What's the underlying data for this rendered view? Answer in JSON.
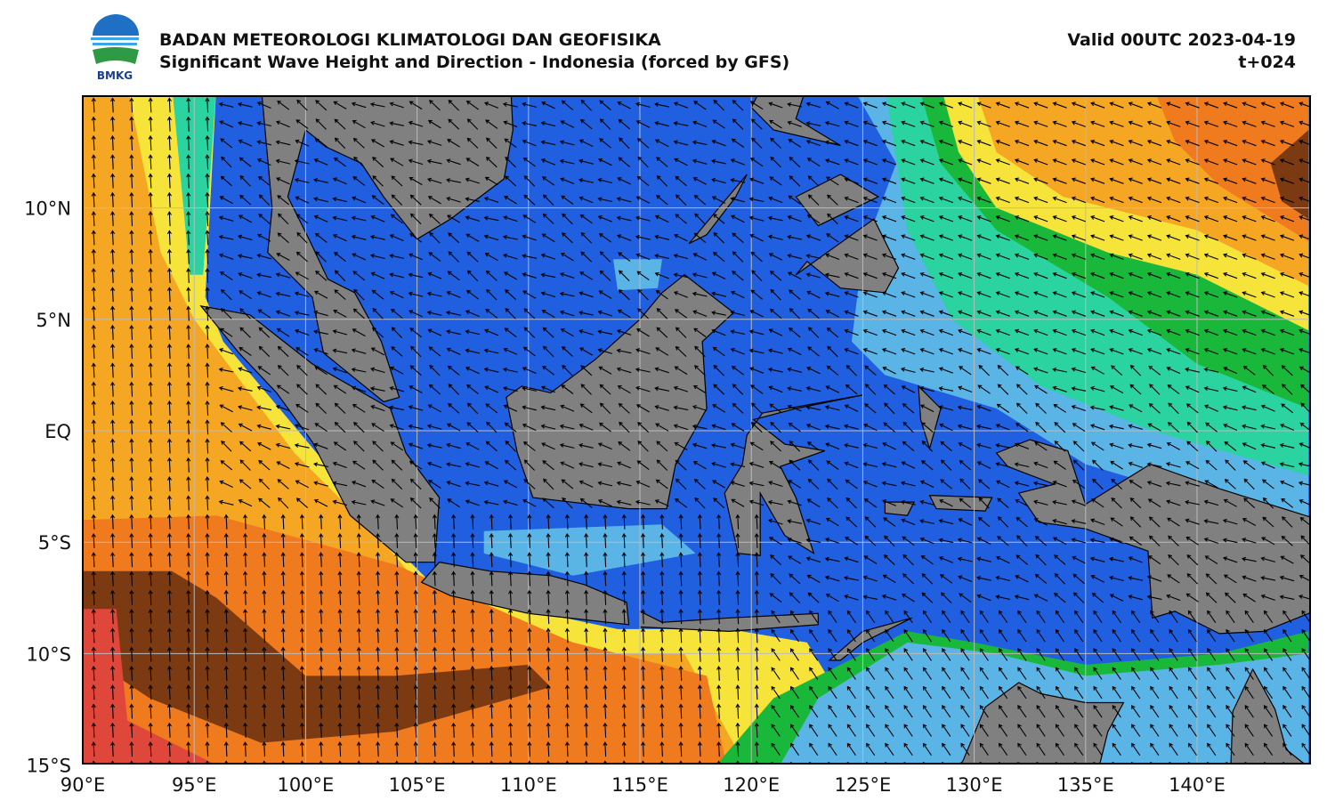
{
  "header": {
    "logo_text": "BMKG",
    "title": "BADAN METEOROLOGI KLIMATOLOGI DAN GEOFISIKA",
    "subtitle": "Significant Wave Height and Direction - Indonesia (forced by GFS)",
    "valid": "Valid 00UTC 2023-04-19",
    "lead": "t+024"
  },
  "map": {
    "x_labels": [
      "90°E",
      "95°E",
      "100°E",
      "105°E",
      "110°E",
      "115°E",
      "120°E",
      "125°E",
      "130°E",
      "135°E",
      "140°E"
    ],
    "y_labels": [
      "10°N",
      "5°N",
      "EQ",
      "5°S",
      "10°S",
      "15°S"
    ]
  }
}
